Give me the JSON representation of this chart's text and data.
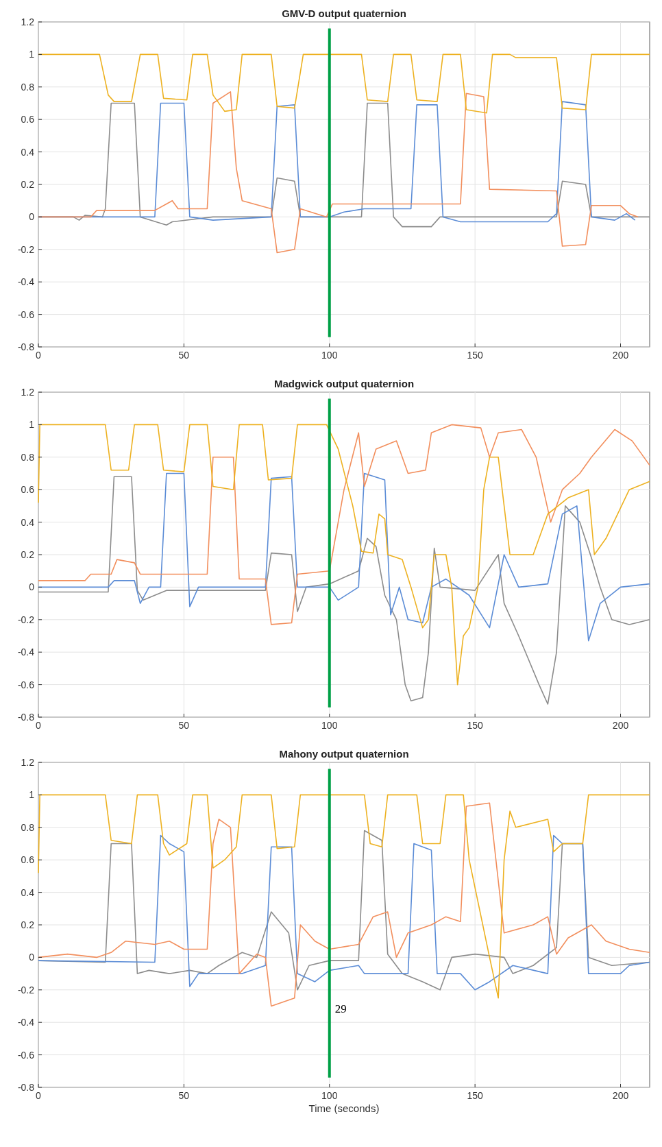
{
  "chart_data": [
    {
      "type": "line",
      "title": "GMV-D output quaternion",
      "xlim": [
        0,
        210
      ],
      "xticks": [
        0,
        50,
        100,
        150,
        200
      ],
      "ylim": [
        -0.8,
        1.2
      ],
      "yticks": [
        -0.8,
        -0.6,
        -0.4,
        -0.2,
        0,
        0.2,
        0.4,
        0.6,
        0.8,
        1,
        1.2
      ],
      "grid": true,
      "ref_lines": [
        {
          "axis": "x",
          "value": 100,
          "color": "#00a046"
        }
      ],
      "series": [
        {
          "color": "#8c8c8c",
          "x": [
            0,
            12,
            14,
            16,
            22,
            23,
            25,
            33,
            35,
            44,
            46,
            60,
            80,
            82,
            88,
            90,
            100,
            111,
            113,
            120,
            122,
            125,
            135,
            138,
            178,
            180,
            188,
            190,
            210
          ],
          "values": [
            0,
            0,
            -0.02,
            0.01,
            0,
            0.05,
            0.7,
            0.7,
            0,
            -0.05,
            -0.03,
            0,
            0,
            0.24,
            0.22,
            0,
            0,
            0,
            0.7,
            0.7,
            0,
            -0.06,
            -0.06,
            0,
            0,
            0.22,
            0.2,
            0,
            0
          ]
        },
        {
          "color": "#5b8cd6",
          "x": [
            0,
            40,
            42,
            50,
            52,
            60,
            80,
            82,
            88,
            90,
            100,
            105,
            112,
            128,
            130,
            137,
            139,
            145,
            175,
            178,
            180,
            188,
            190,
            198,
            202,
            205
          ],
          "values": [
            0,
            0,
            0.7,
            0.7,
            0,
            -0.02,
            0,
            0.68,
            0.69,
            0,
            0,
            0.03,
            0.05,
            0.05,
            0.69,
            0.69,
            0,
            -0.03,
            -0.03,
            0.02,
            0.71,
            0.69,
            0,
            -0.02,
            0.02,
            -0.02
          ]
        },
        {
          "color": "#f28e5c",
          "x": [
            0,
            18,
            20,
            40,
            44,
            46,
            48,
            58,
            60,
            66,
            68,
            70,
            80,
            82,
            88,
            90,
            99,
            101,
            145,
            147,
            153,
            155,
            178,
            180,
            188,
            190,
            200,
            203,
            206
          ],
          "values": [
            0,
            0,
            0.04,
            0.04,
            0.08,
            0.1,
            0.05,
            0.05,
            0.7,
            0.77,
            0.3,
            0.1,
            0.05,
            -0.22,
            -0.2,
            0.05,
            0,
            0.08,
            0.08,
            0.76,
            0.74,
            0.17,
            0.16,
            -0.18,
            -0.17,
            0.07,
            0.07,
            0.02,
            0
          ]
        },
        {
          "color": "#edb120",
          "x": [
            0,
            21,
            24,
            26,
            32,
            35,
            41,
            43,
            51,
            53,
            58,
            60,
            64,
            68,
            70,
            80,
            82,
            88,
            91,
            111,
            113,
            120,
            122,
            128,
            130,
            137,
            139,
            145,
            147,
            154,
            156,
            162,
            164,
            178,
            180,
            188,
            190,
            210
          ],
          "values": [
            1,
            1,
            0.75,
            0.71,
            0.71,
            1,
            1,
            0.73,
            0.72,
            1,
            1,
            0.75,
            0.65,
            0.66,
            1,
            1,
            0.68,
            0.67,
            1,
            1,
            0.72,
            0.71,
            1,
            1,
            0.72,
            0.71,
            1,
            1,
            0.66,
            0.64,
            1,
            1,
            0.98,
            0.98,
            0.67,
            0.66,
            1,
            1
          ]
        }
      ]
    },
    {
      "type": "line",
      "title": "Madgwick output quaternion",
      "xlim": [
        0,
        210
      ],
      "xticks": [
        0,
        50,
        100,
        150,
        200
      ],
      "ylim": [
        -0.8,
        1.2
      ],
      "yticks": [
        -0.8,
        -0.6,
        -0.4,
        -0.2,
        0,
        0.2,
        0.4,
        0.6,
        0.8,
        1,
        1.2
      ],
      "grid": true,
      "ref_lines": [
        {
          "axis": "x",
          "value": 100,
          "color": "#00a046"
        }
      ],
      "series": [
        {
          "color": "#8c8c8c",
          "x": [
            0,
            24,
            26,
            32,
            34,
            36,
            40,
            44,
            78,
            80,
            87,
            89,
            92,
            100,
            110,
            113,
            116,
            119,
            123,
            126,
            128,
            132,
            134,
            136,
            138,
            150,
            158,
            160,
            165,
            172,
            175,
            178,
            181,
            186,
            190,
            193,
            197,
            203,
            210
          ],
          "values": [
            -0.03,
            -0.03,
            0.68,
            0.68,
            -0.02,
            -0.08,
            -0.05,
            -0.02,
            -0.02,
            0.21,
            0.2,
            -0.15,
            0,
            0.02,
            0.1,
            0.3,
            0.25,
            -0.05,
            -0.2,
            -0.6,
            -0.7,
            -0.68,
            -0.4,
            0.24,
            0,
            -0.02,
            0.2,
            -0.1,
            -0.3,
            -0.6,
            -0.72,
            -0.4,
            0.5,
            0.4,
            0.18,
            0,
            -0.2,
            -0.23,
            -0.2
          ]
        },
        {
          "color": "#5b8cd6",
          "x": [
            0,
            24,
            26,
            33,
            35,
            38,
            42,
            44,
            50,
            52,
            55,
            78,
            80,
            87,
            89,
            100,
            103,
            110,
            112,
            119,
            121,
            124,
            127,
            132,
            135,
            140,
            148,
            155,
            160,
            165,
            175,
            180,
            185,
            189,
            193,
            200,
            210
          ],
          "values": [
            0,
            0,
            0.04,
            0.04,
            -0.1,
            0,
            0,
            0.7,
            0.7,
            -0.12,
            0,
            0,
            0.67,
            0.68,
            0,
            0,
            -0.08,
            0,
            0.7,
            0.66,
            -0.17,
            0,
            -0.2,
            -0.22,
            0,
            0.05,
            -0.05,
            -0.25,
            0.2,
            0,
            0.02,
            0.45,
            0.5,
            -0.33,
            -0.1,
            0,
            0.02
          ]
        },
        {
          "color": "#f28e5c",
          "x": [
            0,
            16,
            18,
            25,
            27,
            33,
            35,
            58,
            60,
            67,
            69,
            78,
            80,
            87,
            89,
            100,
            105,
            110,
            112,
            116,
            123,
            127,
            133,
            135,
            142,
            152,
            155,
            158,
            166,
            171,
            176,
            180,
            186,
            190,
            198,
            204,
            210
          ],
          "values": [
            0.04,
            0.04,
            0.08,
            0.08,
            0.17,
            0.15,
            0.08,
            0.08,
            0.8,
            0.8,
            0.05,
            0.05,
            -0.23,
            -0.22,
            0.08,
            0.1,
            0.6,
            0.95,
            0.62,
            0.85,
            0.9,
            0.7,
            0.72,
            0.95,
            1,
            0.98,
            0.8,
            0.95,
            0.97,
            0.8,
            0.4,
            0.6,
            0.7,
            0.8,
            0.97,
            0.9,
            0.75
          ]
        },
        {
          "color": "#edb120",
          "x": [
            0,
            0.5,
            23,
            25,
            31,
            33,
            41,
            43,
            50,
            52,
            58,
            60,
            67,
            69,
            77,
            79,
            87,
            89,
            99,
            103,
            108,
            111,
            115,
            117,
            119,
            120,
            125,
            128,
            132,
            134,
            136,
            140,
            142,
            144,
            146,
            148,
            151,
            153,
            155,
            158,
            162,
            170,
            175,
            182,
            189,
            191,
            195,
            203,
            210
          ],
          "values": [
            0.52,
            1,
            1,
            0.72,
            0.72,
            1,
            1,
            0.72,
            0.71,
            1,
            1,
            0.62,
            0.6,
            1,
            1,
            0.66,
            0.67,
            1,
            1,
            0.85,
            0.5,
            0.22,
            0.21,
            0.45,
            0.42,
            0.2,
            0.17,
            0,
            -0.25,
            -0.2,
            0.2,
            0.2,
            0,
            -0.6,
            -0.3,
            -0.25,
            0,
            0.6,
            0.8,
            0.8,
            0.2,
            0.2,
            0.45,
            0.55,
            0.6,
            0.2,
            0.3,
            0.6,
            0.65
          ]
        }
      ]
    },
    {
      "type": "line",
      "title": "Mahony output quaternion",
      "xlabel": "Time (seconds)",
      "xlim": [
        0,
        210
      ],
      "xticks": [
        0,
        50,
        100,
        150,
        200
      ],
      "ylim": [
        -0.8,
        1.2
      ],
      "yticks": [
        -0.8,
        -0.6,
        -0.4,
        -0.2,
        0,
        0.2,
        0.4,
        0.6,
        0.8,
        1,
        1.2
      ],
      "grid": true,
      "ref_lines": [
        {
          "axis": "x",
          "value": 100,
          "color": "#00a046"
        }
      ],
      "annotations": [
        "29"
      ],
      "series": [
        {
          "color": "#8c8c8c",
          "x": [
            0,
            23,
            25,
            32,
            34,
            38,
            45,
            52,
            58,
            62,
            70,
            75,
            80,
            86,
            89,
            93,
            100,
            110,
            112,
            118,
            120,
            125,
            132,
            138,
            142,
            150,
            160,
            163,
            170,
            178,
            180,
            187,
            189,
            197,
            210
          ],
          "values": [
            -0.02,
            -0.03,
            0.7,
            0.7,
            -0.1,
            -0.08,
            -0.1,
            -0.08,
            -0.1,
            -0.05,
            0.03,
            0,
            0.28,
            0.15,
            -0.2,
            -0.05,
            -0.02,
            -0.02,
            0.78,
            0.72,
            0.02,
            -0.1,
            -0.15,
            -0.2,
            0,
            0.02,
            0,
            -0.1,
            -0.05,
            0.06,
            0.7,
            0.7,
            0,
            -0.05,
            -0.03
          ]
        },
        {
          "color": "#5b8cd6",
          "x": [
            0,
            40,
            42,
            45,
            50,
            52,
            55,
            70,
            78,
            80,
            87,
            89,
            95,
            100,
            110,
            112,
            120,
            127,
            129,
            135,
            137,
            145,
            150,
            155,
            163,
            175,
            177,
            180,
            187,
            189,
            200,
            203,
            210
          ],
          "values": [
            -0.02,
            -0.03,
            0.75,
            0.7,
            0.65,
            -0.18,
            -0.1,
            -0.1,
            -0.05,
            0.68,
            0.68,
            -0.1,
            -0.15,
            -0.08,
            -0.05,
            -0.1,
            -0.1,
            -0.1,
            0.7,
            0.66,
            -0.1,
            -0.1,
            -0.2,
            -0.15,
            -0.05,
            -0.1,
            0.75,
            0.7,
            0.7,
            -0.1,
            -0.1,
            -0.05,
            -0.03
          ]
        },
        {
          "color": "#f28e5c",
          "x": [
            0,
            10,
            20,
            25,
            30,
            40,
            45,
            50,
            58,
            60,
            62,
            66,
            69,
            75,
            78,
            80,
            88,
            90,
            95,
            100,
            110,
            115,
            120,
            123,
            127,
            135,
            140,
            145,
            147,
            155,
            160,
            170,
            175,
            178,
            182,
            190,
            195,
            203,
            210
          ],
          "values": [
            0,
            0.02,
            0,
            0.03,
            0.1,
            0.08,
            0.1,
            0.05,
            0.05,
            0.7,
            0.85,
            0.8,
            -0.1,
            0.02,
            0,
            -0.3,
            -0.25,
            0.2,
            0.1,
            0.05,
            0.08,
            0.25,
            0.28,
            0,
            0.15,
            0.2,
            0.25,
            0.22,
            0.93,
            0.95,
            0.15,
            0.2,
            0.25,
            0.02,
            0.12,
            0.2,
            0.1,
            0.05,
            0.03
          ]
        },
        {
          "color": "#edb120",
          "x": [
            0,
            0.5,
            23,
            25,
            32,
            34,
            41,
            43,
            45,
            51,
            53,
            58,
            60,
            64,
            68,
            70,
            80,
            82,
            88,
            90,
            112,
            114,
            118,
            120,
            130,
            132,
            138,
            140,
            146,
            148,
            155,
            158,
            160,
            162,
            164,
            175,
            177,
            180,
            187,
            189,
            210
          ],
          "values": [
            0.52,
            1,
            1,
            0.72,
            0.7,
            1,
            1,
            0.7,
            0.63,
            0.7,
            1,
            1,
            0.55,
            0.6,
            0.68,
            1,
            1,
            0.67,
            0.68,
            1,
            1,
            0.7,
            0.68,
            1,
            1,
            0.7,
            0.7,
            1,
            1,
            0.6,
            0,
            -0.25,
            0.6,
            0.9,
            0.8,
            0.85,
            0.65,
            0.7,
            0.7,
            1,
            1
          ]
        }
      ]
    }
  ]
}
